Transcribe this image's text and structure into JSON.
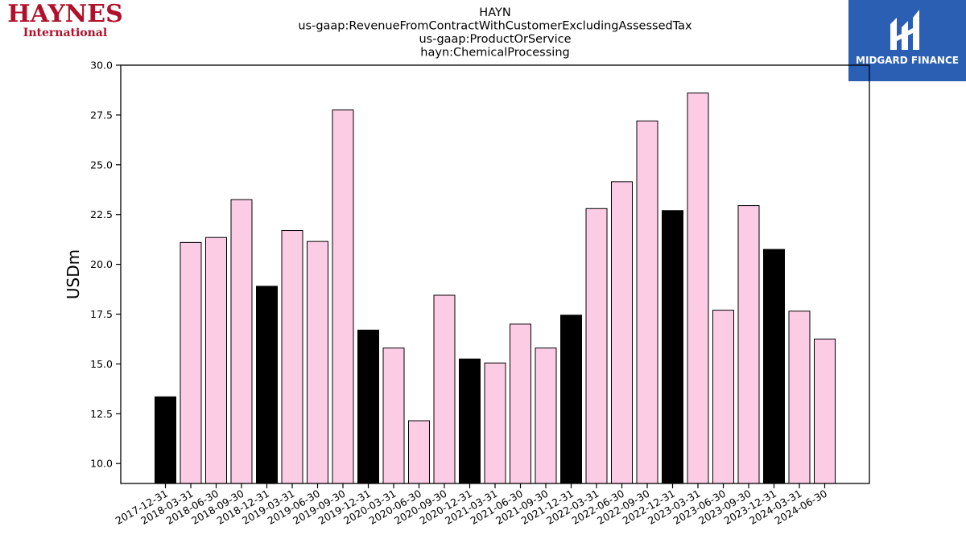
{
  "header": {
    "left_logo": {
      "brand": "HAYNES",
      "sub": "International"
    },
    "right_logo": {
      "name": "MIDGARD FINANCE",
      "icon": "midgard-m-icon"
    }
  },
  "chart_data": {
    "type": "bar",
    "title_lines": [
      "HAYN",
      "us-gaap:RevenueFromContractWithCustomerExcludingAssessedTax",
      "us-gaap:ProductOrService",
      "hayn:ChemicalProcessing"
    ],
    "xlabel": "",
    "ylabel": "USDm",
    "ylim": [
      9.0,
      30.0
    ],
    "yticks": [
      "10.0",
      "12.5",
      "15.0",
      "17.5",
      "20.0",
      "22.5",
      "25.0",
      "27.5",
      "30.0"
    ],
    "categories": [
      "2017-12-31",
      "2018-03-31",
      "2018-06-30",
      "2018-09-30",
      "2018-12-31",
      "2019-03-31",
      "2019-06-30",
      "2019-09-30",
      "2019-12-31",
      "2020-03-31",
      "2020-06-30",
      "2020-09-30",
      "2020-12-31",
      "2021-03-31",
      "2021-06-30",
      "2021-09-30",
      "2021-12-31",
      "2022-03-31",
      "2022-06-30",
      "2022-09-30",
      "2022-12-31",
      "2023-03-31",
      "2023-06-30",
      "2023-09-30",
      "2023-12-31",
      "2024-03-31",
      "2024-06-30"
    ],
    "values": [
      13.35,
      21.1,
      21.35,
      23.25,
      18.9,
      21.7,
      21.15,
      27.75,
      16.7,
      15.8,
      12.15,
      18.45,
      15.25,
      15.05,
      17.0,
      15.8,
      17.45,
      22.8,
      24.15,
      27.2,
      22.7,
      28.6,
      17.7,
      22.95,
      20.75,
      17.65,
      16.25
    ],
    "colors": {
      "q4": "#000000",
      "other": "#fccbe4",
      "edge": "#000000"
    }
  }
}
